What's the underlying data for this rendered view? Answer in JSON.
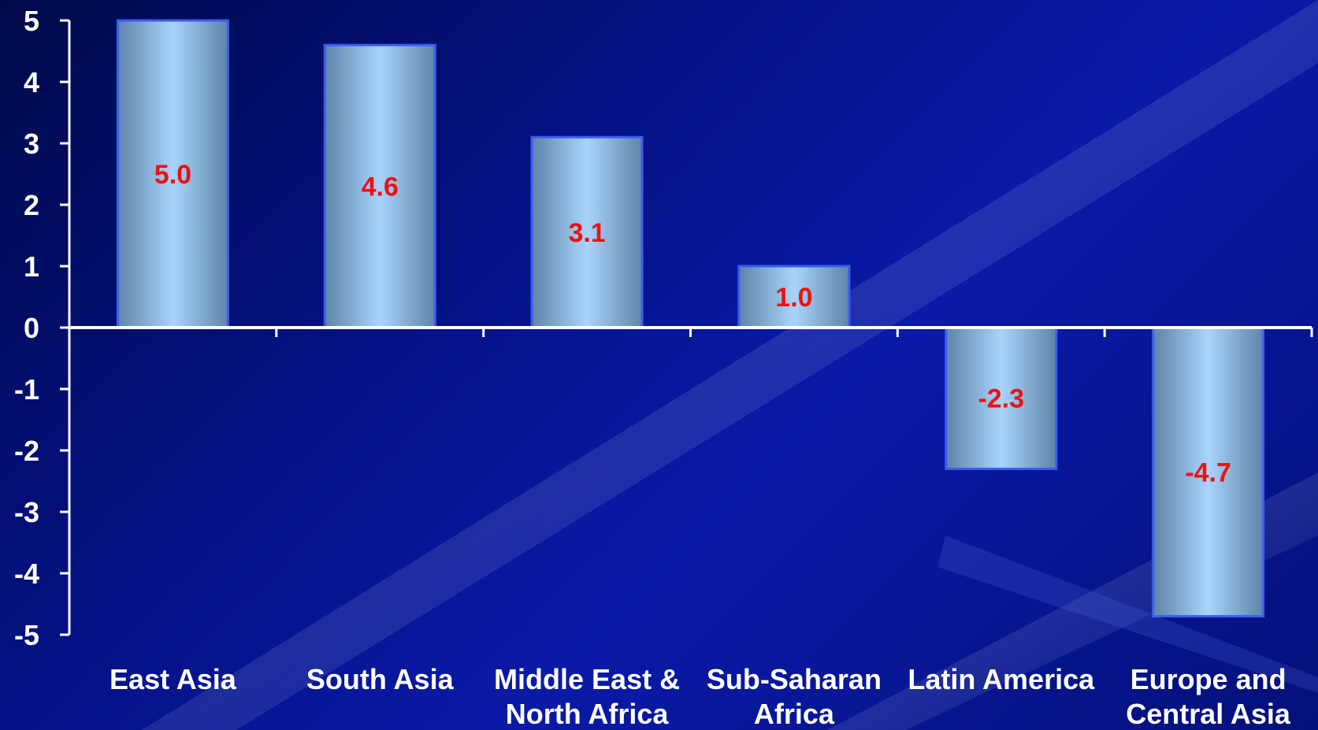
{
  "chart_data": {
    "type": "bar",
    "categories": [
      [
        "East Asia"
      ],
      [
        "South Asia"
      ],
      [
        "Middle East &",
        "North Africa"
      ],
      [
        "Sub-Saharan",
        "Africa"
      ],
      [
        "Latin America"
      ],
      [
        "Europe and",
        "Central Asia"
      ]
    ],
    "values": [
      5.0,
      4.6,
      3.1,
      1.0,
      -2.3,
      -4.7
    ],
    "data_labels": [
      "5.0",
      "4.6",
      "3.1",
      "1.0",
      "-2.3",
      "-4.7"
    ],
    "title": "",
    "xlabel": "",
    "ylabel": "",
    "ylim": [
      -5,
      5
    ],
    "yticks": [
      5,
      4,
      3,
      2,
      1,
      0,
      -1,
      -2,
      -3,
      -4,
      -5
    ],
    "grid": false,
    "legend": "none",
    "colors": {
      "bar_center": "#a9d4fb",
      "bar_edge": "#5e84a8",
      "bar_outline": "#3a5ef0",
      "data_label": "#ee1111",
      "axis": "#ffffff",
      "text": "#ffffff"
    }
  }
}
